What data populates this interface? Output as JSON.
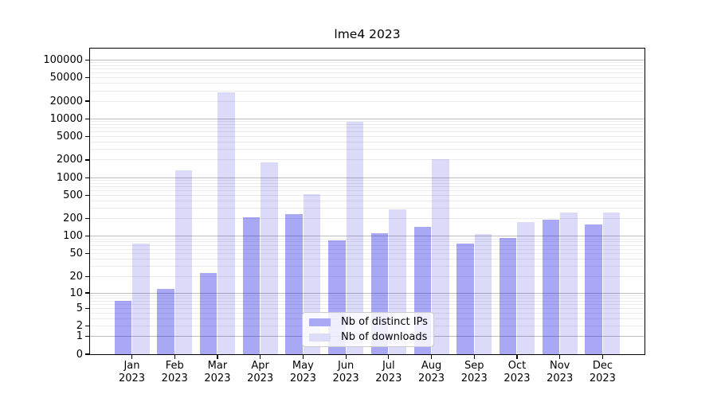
{
  "title": "lme4 2023",
  "legend": {
    "items": [
      {
        "label": "Nb of distinct IPs",
        "color": "#a9a9f4"
      },
      {
        "label": "Nb of downloads",
        "color": "#dcdcf8"
      }
    ]
  },
  "chart_data": {
    "type": "bar",
    "title": "lme4 2023",
    "yscale": "log1p",
    "grid": true,
    "legend_position": "lower center",
    "categories": [
      "Jan",
      "Feb",
      "Mar",
      "Apr",
      "May",
      "Jun",
      "Jul",
      "Aug",
      "Sep",
      "Oct",
      "Nov",
      "Dec"
    ],
    "year": "2023",
    "series": [
      {
        "name": "Nb of distinct IPs",
        "fill": "rgba(0,0,225,0.34)",
        "legend_color": "#a9a9f4",
        "values": [
          7,
          12,
          23,
          213,
          240,
          85,
          113,
          147,
          75,
          93,
          192,
          158
        ]
      },
      {
        "name": "Nb of downloads",
        "fill": "rgba(0,0,210,0.14)",
        "legend_color": "#dcdcf8",
        "values": [
          75,
          1330,
          28000,
          1800,
          520,
          8800,
          285,
          2050,
          108,
          175,
          255,
          252
        ]
      }
    ],
    "yticks": [
      0,
      1,
      2,
      5,
      10,
      20,
      50,
      100,
      200,
      500,
      1000,
      2000,
      5000,
      10000,
      20000,
      50000,
      100000
    ],
    "ylim": [
      0,
      170000
    ],
    "xlabel": "",
    "ylabel": ""
  },
  "colors": {
    "background": "#ffffff",
    "axis": "#000000",
    "major_grid": "#bdbdbd",
    "minor_grid": "#ececec"
  }
}
